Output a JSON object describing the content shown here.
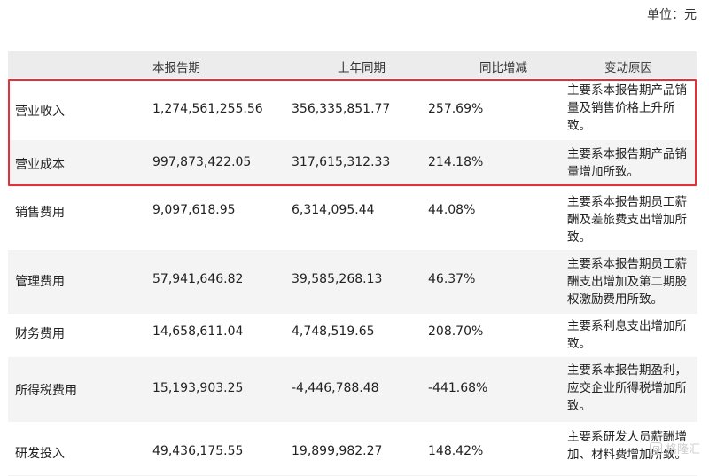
{
  "unit_label": "单位：元",
  "headers": [
    "",
    "本报告期",
    "上年同期",
    "同比增减",
    "变动原因"
  ],
  "rows": [
    {
      "item": "营业收入",
      "current": "1,274,561,255.56",
      "prior": "356,335,851.77",
      "change": "257.69%",
      "reason": [
        "主要系本报告期产品销",
        "量及销售价格上升所",
        "致。"
      ],
      "highlighted": true
    },
    {
      "item": "营业成本",
      "current": "997,873,422.05",
      "prior": "317,615,312.33",
      "change": "214.18%",
      "reason": [
        "主要系本报告期产品销",
        "量增加所致。"
      ],
      "highlighted": true
    },
    {
      "item": "销售费用",
      "current": "9,097,618.95",
      "prior": "6,314,095.44",
      "change": "44.08%",
      "reason": [
        "主要系本报告期员工薪",
        "酬及差旅费支出增加所",
        "致。"
      ],
      "highlighted": false
    },
    {
      "item": "管理费用",
      "current": "57,941,646.82",
      "prior": "39,585,268.13",
      "change": "46.37%",
      "reason": [
        "主要系本报告期员工薪",
        "酬支出增加及第二期股",
        "权激励费用所致。"
      ],
      "highlighted": false
    },
    {
      "item": "财务费用",
      "current": "14,658,611.04",
      "prior": "4,748,519.65",
      "change": "208.70%",
      "reason": [
        "主要系利息支出增加所",
        "致。"
      ],
      "highlighted": false
    },
    {
      "item": "所得税费用",
      "current": "15,193,903.25",
      "prior": "-4,446,788.48",
      "change": "-441.68%",
      "reason": [
        "主要系本报告期盈利，",
        "应交企业所得税增加所",
        "致。"
      ],
      "highlighted": false
    },
    {
      "item": "研发投入",
      "current": "49,436,175.55",
      "prior": "19,899,982.27",
      "change": "148.42%",
      "reason": [
        "主要系研发人员薪酬增",
        "加、材料费增加所致。"
      ],
      "highlighted": false
    }
  ],
  "watermark": "格隆汇",
  "highlight_color": "#e4303a"
}
